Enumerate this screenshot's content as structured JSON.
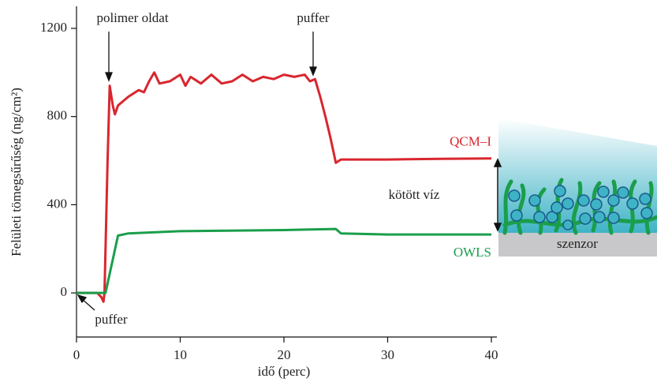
{
  "chart_data": {
    "type": "line",
    "y_label": "Felületi tömegsűrűség (ng/cm²)",
    "x_label": "idő (perc)",
    "xlim": [
      0,
      40
    ],
    "xticks": [
      0,
      10,
      20,
      30,
      40
    ],
    "ylim": [
      -200,
      1300
    ],
    "yticks": [
      0,
      400,
      800,
      1200
    ],
    "series": [
      {
        "name": "QCM–I",
        "color": "#d9262e",
        "x": [
          0,
          2,
          2.4,
          2.6,
          2.7,
          3.0,
          3.2,
          3.5,
          3.7,
          4,
          5,
          6,
          6.5,
          7,
          7.5,
          8,
          9,
          10,
          10.5,
          11,
          12,
          13,
          14,
          15,
          16,
          17,
          18,
          19,
          20,
          21,
          22,
          22.5,
          23,
          23.5,
          24,
          24.5,
          25,
          25.5,
          30,
          35,
          40
        ],
        "values": [
          0,
          0,
          -20,
          -40,
          0,
          600,
          940,
          850,
          810,
          850,
          890,
          920,
          910,
          960,
          1000,
          950,
          960,
          990,
          940,
          980,
          950,
          990,
          950,
          960,
          990,
          960,
          980,
          970,
          990,
          980,
          990,
          960,
          970,
          890,
          800,
          700,
          590,
          605,
          605,
          608,
          610
        ]
      },
      {
        "name": "OWLS",
        "color": "#1a9e4b",
        "x": [
          0,
          2.5,
          2.8,
          4.0,
          5,
          10,
          20,
          25,
          25.5,
          30,
          40
        ],
        "values": [
          0,
          0,
          0,
          260,
          270,
          280,
          285,
          290,
          270,
          265,
          265
        ]
      }
    ],
    "annotations": [
      "polimer oldat",
      "puffer",
      "puffer",
      "kötött víz",
      "szenzor"
    ]
  }
}
